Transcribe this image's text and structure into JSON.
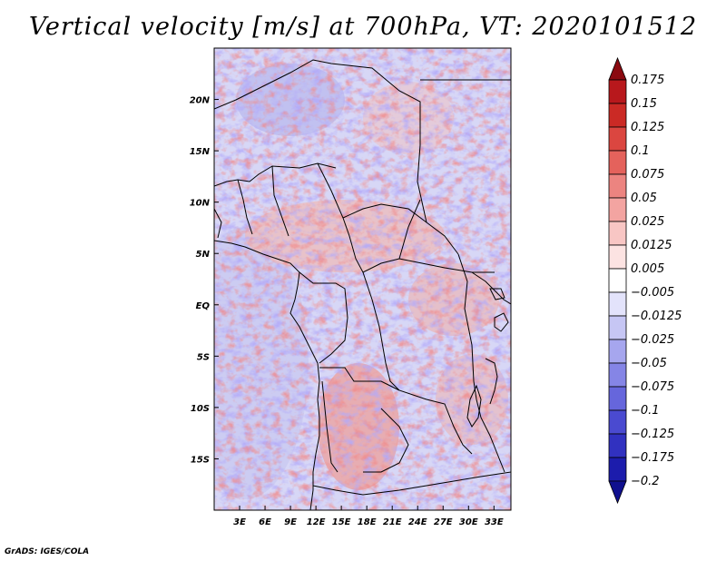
{
  "title": "Vertical velocity [m/s] at 700hPa, VT: 2020101512",
  "credit": "GrADS: IGES/COLA",
  "map": {
    "lon_range": [
      0,
      35
    ],
    "lat_range": [
      -20,
      25
    ],
    "lat_ticks": [
      {
        "label": "20N",
        "value": 20
      },
      {
        "label": "15N",
        "value": 15
      },
      {
        "label": "10N",
        "value": 10
      },
      {
        "label": "5N",
        "value": 5
      },
      {
        "label": "EQ",
        "value": 0
      },
      {
        "label": "5S",
        "value": -5
      },
      {
        "label": "10S",
        "value": -10
      },
      {
        "label": "15S",
        "value": -15
      }
    ],
    "lon_ticks": [
      {
        "label": "3E",
        "value": 3
      },
      {
        "label": "6E",
        "value": 6
      },
      {
        "label": "9E",
        "value": 9
      },
      {
        "label": "12E",
        "value": 12
      },
      {
        "label": "15E",
        "value": 15
      },
      {
        "label": "18E",
        "value": 18
      },
      {
        "label": "21E",
        "value": 21
      },
      {
        "label": "24E",
        "value": 24
      },
      {
        "label": "27E",
        "value": 27
      },
      {
        "label": "30E",
        "value": 30
      },
      {
        "label": "33E",
        "value": 33
      }
    ]
  },
  "colorbar": {
    "levels": [
      {
        "label": "0.175",
        "color": "#a50f15"
      },
      {
        "label": "0.15",
        "color": "#b8181c"
      },
      {
        "label": "0.125",
        "color": "#cb2a25"
      },
      {
        "label": "0.1",
        "color": "#db4640"
      },
      {
        "label": "0.075",
        "color": "#e4625c"
      },
      {
        "label": "0.05",
        "color": "#ec8480"
      },
      {
        "label": "0.025",
        "color": "#f3a4a1"
      },
      {
        "label": "0.0125",
        "color": "#f8c6c4"
      },
      {
        "label": "0.005",
        "color": "#fce3e2"
      },
      {
        "label": "−0.005",
        "color": "#ffffff"
      },
      {
        "label": "−0.0125",
        "color": "#e3e3fb"
      },
      {
        "label": "−0.025",
        "color": "#c6c6f4"
      },
      {
        "label": "−0.05",
        "color": "#a6a6ee"
      },
      {
        "label": "−0.075",
        "color": "#8585e6"
      },
      {
        "label": "−0.1",
        "color": "#6666dc"
      },
      {
        "label": "−0.125",
        "color": "#4a4ad0"
      },
      {
        "label": "−0.175",
        "color": "#3131c0"
      },
      {
        "label": "−0.2",
        "color": "#1c1cac"
      }
    ],
    "top_arrow_color": "#8b0a10",
    "bottom_arrow_color": "#10108f"
  }
}
